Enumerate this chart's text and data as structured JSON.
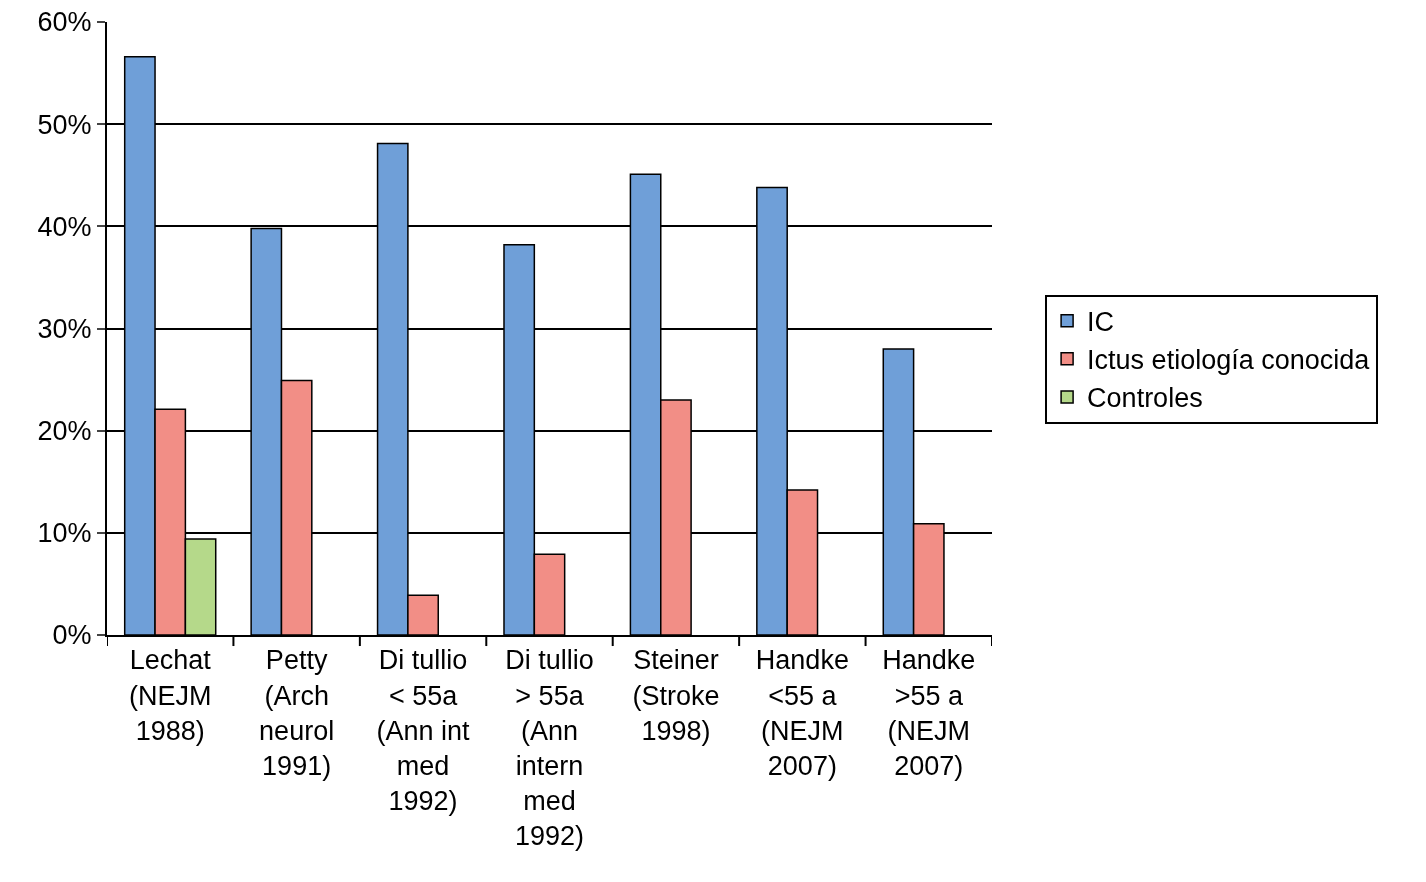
{
  "chart_data": {
    "type": "bar",
    "categories": [
      "Lechat\n(NEJM\n1988)",
      "Petty\n(Arch\nneurol\n1991)",
      "Di tullio\n< 55a\n(Ann int\nmed\n1992)",
      "Di tullio\n> 55a\n(Ann\nintern\nmed\n1992)",
      "Steiner\n(Stroke\n1998)",
      "Handke\n<55 a\n(NEJM\n2007)",
      "Handke\n>55 a\n(NEJM\n2007)"
    ],
    "series": [
      {
        "name": "IC",
        "color": "#6f9fd8",
        "values": [
          56.6,
          39.8,
          48.1,
          38.2,
          45.1,
          43.8,
          28
        ]
      },
      {
        "name": "Ictus etiología conocida",
        "color": "#f28e86",
        "values": [
          22.1,
          24.9,
          3.9,
          7.9,
          23,
          14.2,
          10.9
        ]
      },
      {
        "name": "Controles",
        "color": "#b5d98a",
        "values": [
          9.4,
          null,
          null,
          null,
          null,
          null,
          null
        ]
      }
    ],
    "ylim": [
      0,
      60
    ],
    "yticks": [
      {
        "value": 0,
        "label": "0%"
      },
      {
        "value": 10,
        "label": "10%"
      },
      {
        "value": 20,
        "label": "20%"
      },
      {
        "value": 30,
        "label": "30%"
      },
      {
        "value": 40,
        "label": "40%"
      },
      {
        "value": 50,
        "label": "50%"
      },
      {
        "value": 60,
        "label": "60%"
      }
    ],
    "grid": "y",
    "legend": "right"
  }
}
